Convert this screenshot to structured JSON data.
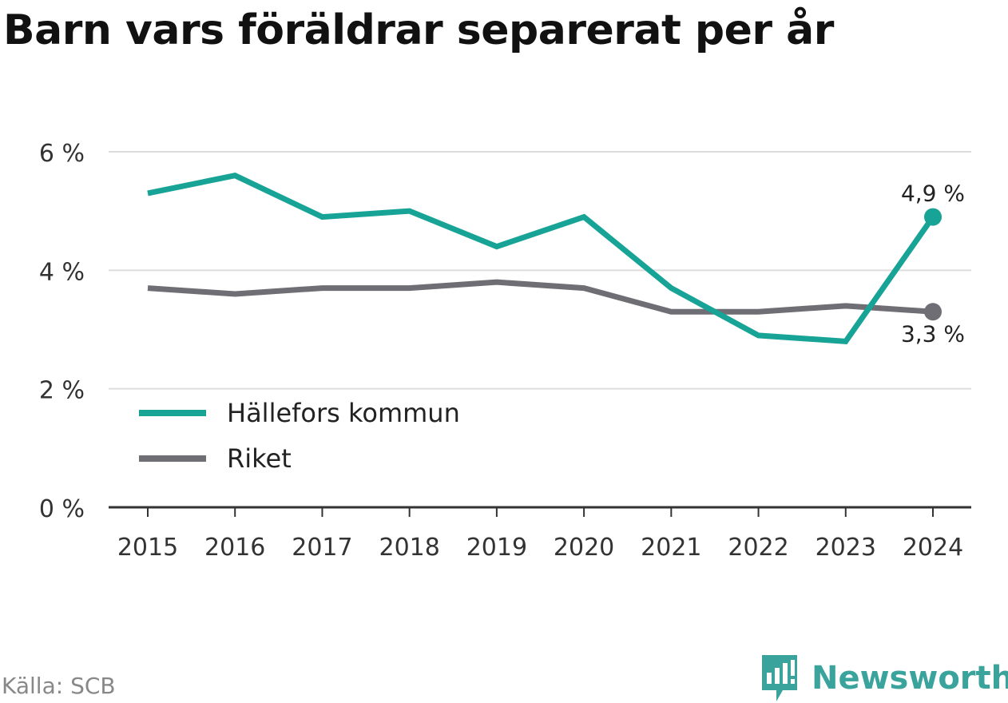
{
  "chart_data": {
    "type": "line",
    "title": "Barn vars föräldrar separerat per år",
    "x": [
      "2015",
      "2016",
      "2017",
      "2018",
      "2019",
      "2020",
      "2021",
      "2022",
      "2023",
      "2024"
    ],
    "series": [
      {
        "name": "Hällefors kommun",
        "color": "#17a497",
        "values": [
          5.3,
          5.6,
          4.9,
          5.0,
          4.4,
          4.9,
          3.7,
          2.9,
          2.8,
          4.9
        ],
        "end_label": "4,9 %"
      },
      {
        "name": "Riket",
        "color": "#6f6e74",
        "values": [
          3.7,
          3.6,
          3.7,
          3.7,
          3.8,
          3.7,
          3.3,
          3.3,
          3.4,
          3.3
        ],
        "end_label": "3,3 %"
      }
    ],
    "ylim": [
      0,
      6
    ],
    "yticks": [
      0,
      2,
      4,
      6
    ],
    "ytick_labels": [
      "0 %",
      "2 %",
      "4 %",
      "6 %"
    ],
    "xlabel": "",
    "ylabel": "",
    "grid": true,
    "legend_position": "bottom-left"
  },
  "footer": {
    "source": "Källa: SCB",
    "brand": "Newsworthy"
  },
  "icons": {
    "brand_logo": "newsworthy-logo-icon"
  }
}
